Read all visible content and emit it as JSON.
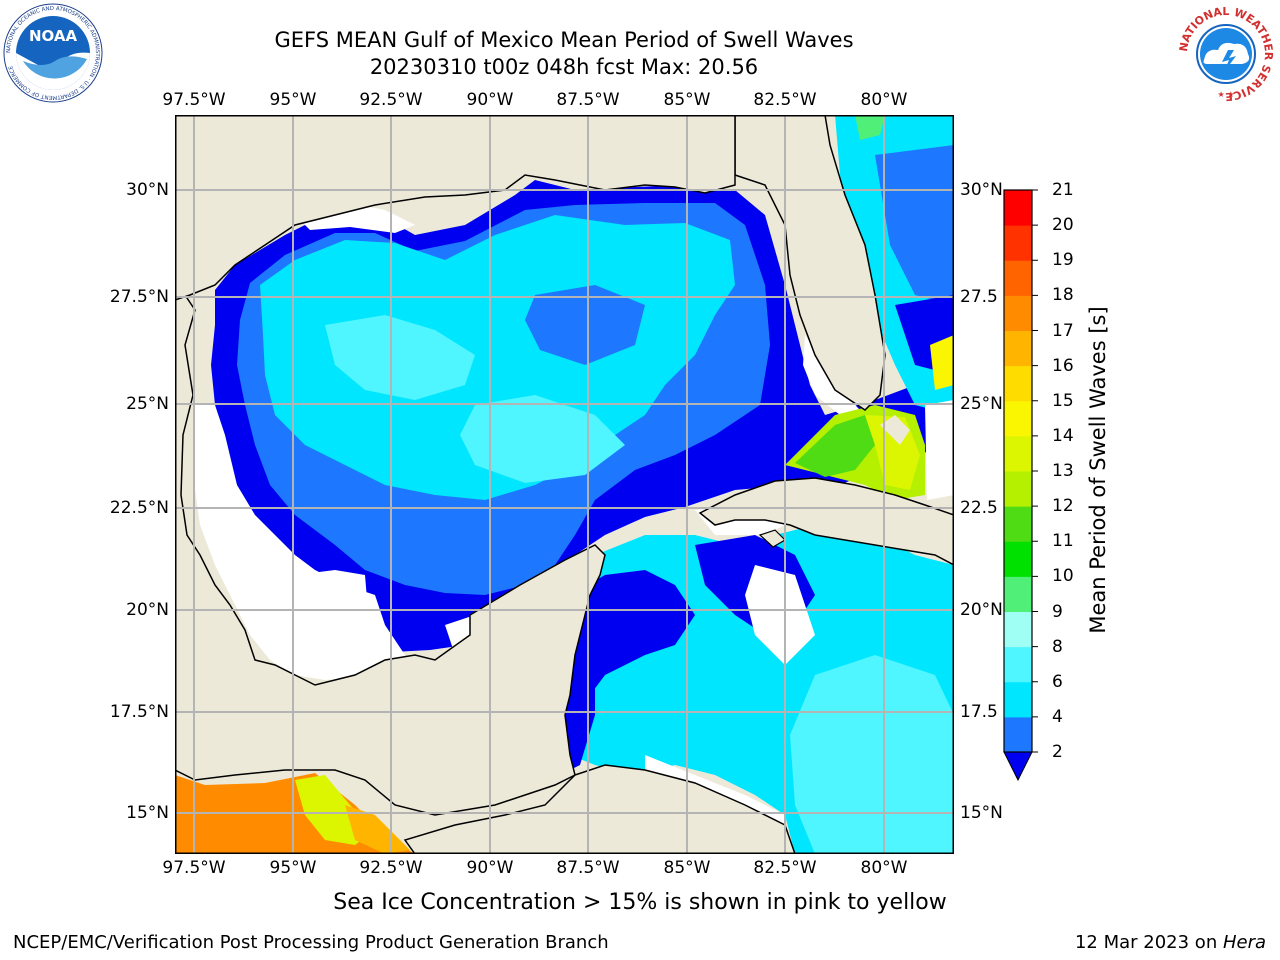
{
  "title_line1": "GEFS MEAN Gulf of Mexico Mean Period of Swell Waves",
  "title_line2": "20230310 t00z 048h fcst   Max: 20.56",
  "lon_labels": [
    "97.5°W",
    "95°W",
    "92.5°W",
    "90°W",
    "87.5°W",
    "85°W",
    "82.5°W",
    "80°W"
  ],
  "lat_labels": [
    "30°N",
    "27.5°N",
    "25°N",
    "22.5°N",
    "20°N",
    "17.5°N",
    "15°N"
  ],
  "lat_labels_right": [
    "30°N",
    "27.5",
    "25°N",
    "22.5",
    "20°N",
    "17.5",
    "15°N"
  ],
  "colorbar": {
    "title": "Mean Period of Swell Waves [s]",
    "ticks": [
      "2",
      "4",
      "6",
      "8",
      "9",
      "10",
      "11",
      "12",
      "13",
      "14",
      "15",
      "16",
      "17",
      "18",
      "19",
      "20",
      "21"
    ],
    "colors": [
      "#0000f0",
      "#1e78ff",
      "#00e6ff",
      "#4ff5ff",
      "#a0fff5",
      "#50f078",
      "#00e100",
      "#50dc14",
      "#b4f000",
      "#dcf500",
      "#faf500",
      "#ffdc00",
      "#ffb400",
      "#ff8c00",
      "#ff6400",
      "#ff3200",
      "#ff0000"
    ]
  },
  "subtitle": "Sea Ice Concentration > 15% is shown in pink to yellow",
  "footer_left": "NCEP/EMC/Verification Post Processing Product Generation Branch",
  "footer_date": "12 Mar 2023 on ",
  "footer_machine": "Hera",
  "logos": {
    "noaa_text": "NOAA",
    "noaa_ring_text": "NATIONAL OCEANIC AND ATMOSPHERIC ADMINISTRATION · U.S. DEPARTMENT OF COMMERCE",
    "nws_ring_text": "NATIONAL WEATHER SERVICE"
  },
  "colors": {
    "land": "#ede9d9",
    "ocean_missing": "#ffffff",
    "grid": "#b4b4b4"
  }
}
